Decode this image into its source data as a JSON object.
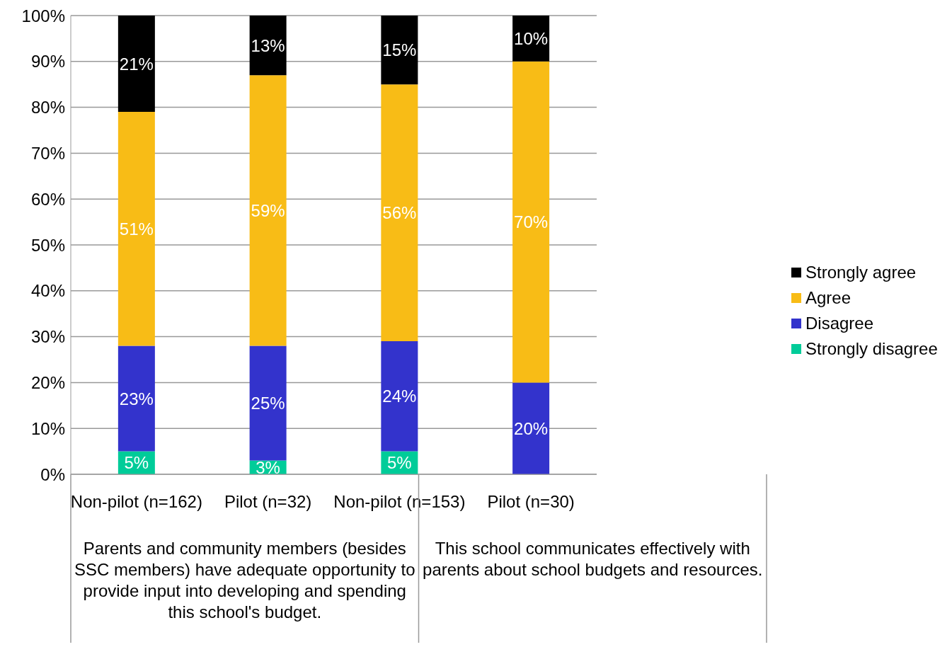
{
  "chart_data": {
    "type": "bar",
    "stacked": true,
    "categories": [
      "Non-pilot (n=162)",
      "Pilot (n=32)",
      "Non-pilot (n=153)",
      "Pilot (n=30)"
    ],
    "series": [
      {
        "name": "Strongly disagree",
        "color": "#00cc99",
        "values": [
          5,
          3,
          5,
          0
        ],
        "value_labels": [
          "5%",
          "3%",
          "5%",
          null
        ]
      },
      {
        "name": "Disagree",
        "color": "#3333cc",
        "values": [
          23,
          25,
          24,
          20
        ],
        "value_labels": [
          "23%",
          "25%",
          "24%",
          "20%"
        ]
      },
      {
        "name": "Agree",
        "color": "#f8bc16",
        "values": [
          51,
          59,
          56,
          70
        ],
        "value_labels": [
          "51%",
          "59%",
          "56%",
          "70%"
        ]
      },
      {
        "name": "Strongly agree",
        "color": "#000000",
        "values": [
          21,
          13,
          15,
          10
        ],
        "value_labels": [
          "21%",
          "13%",
          "15%",
          "10%"
        ]
      }
    ],
    "ylim": [
      0,
      100
    ],
    "yticks": [
      {
        "value": 0,
        "label": "0%"
      },
      {
        "value": 10,
        "label": "10%"
      },
      {
        "value": 20,
        "label": "20%"
      },
      {
        "value": 30,
        "label": "30%"
      },
      {
        "value": 40,
        "label": "40%"
      },
      {
        "value": 50,
        "label": "50%"
      },
      {
        "value": 60,
        "label": "60%"
      },
      {
        "value": 70,
        "label": "70%"
      },
      {
        "value": 80,
        "label": "80%"
      },
      {
        "value": 90,
        "label": "90%"
      },
      {
        "value": 100,
        "label": "100%"
      }
    ],
    "grid": "y",
    "legend": "right",
    "annotations": [
      "Parents and community members (besides SSC members) have adequate opportunity to provide input into developing and spending this school's budget.",
      "This school communicates effectively with parents about school budgets and resources."
    ]
  }
}
